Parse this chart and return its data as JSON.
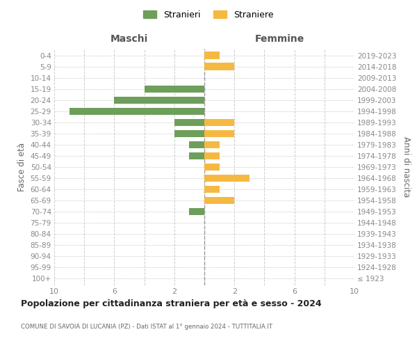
{
  "age_groups": [
    "100+",
    "95-99",
    "90-94",
    "85-89",
    "80-84",
    "75-79",
    "70-74",
    "65-69",
    "60-64",
    "55-59",
    "50-54",
    "45-49",
    "40-44",
    "35-39",
    "30-34",
    "25-29",
    "20-24",
    "15-19",
    "10-14",
    "5-9",
    "0-4"
  ],
  "birth_years": [
    "≤ 1923",
    "1924-1928",
    "1929-1933",
    "1934-1938",
    "1939-1943",
    "1944-1948",
    "1949-1953",
    "1954-1958",
    "1959-1963",
    "1964-1968",
    "1969-1973",
    "1974-1978",
    "1979-1983",
    "1984-1988",
    "1989-1993",
    "1994-1998",
    "1999-2003",
    "2004-2008",
    "2009-2013",
    "2014-2018",
    "2019-2023"
  ],
  "males": [
    0,
    0,
    0,
    0,
    0,
    0,
    1,
    0,
    0,
    0,
    0,
    1,
    1,
    2,
    2,
    9,
    6,
    4,
    0,
    0,
    0
  ],
  "females": [
    0,
    0,
    0,
    0,
    0,
    0,
    0,
    2,
    1,
    3,
    1,
    1,
    1,
    2,
    2,
    0,
    0,
    0,
    0,
    2,
    1
  ],
  "male_color": "#6d9e5a",
  "female_color": "#f5b942",
  "background_color": "#ffffff",
  "grid_color": "#cccccc",
  "title": "Popolazione per cittadinanza straniera per età e sesso - 2024",
  "subtitle": "COMUNE DI SAVOIA DI LUCANIA (PZ) - Dati ISTAT al 1° gennaio 2024 - TUTTITALIA.IT",
  "xlabel_left": "Maschi",
  "xlabel_right": "Femmine",
  "ylabel_left": "Fasce di età",
  "ylabel_right": "Anni di nascita",
  "legend_stranieri": "Stranieri",
  "legend_straniere": "Straniere",
  "xlim": 10
}
